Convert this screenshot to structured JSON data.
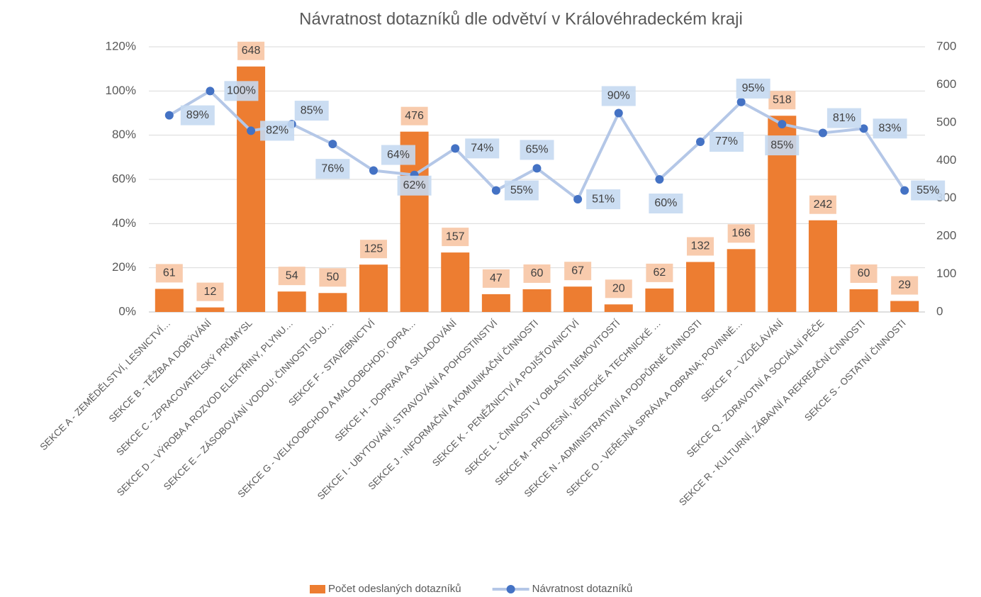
{
  "chart_data": {
    "type": "bar_line",
    "title": "Návratnost dotazníků dle odvětví v Královéhradeckém kraji",
    "categories": [
      "SEKCE A - ZEMĚDĚLSTVÍ, LESNICTVÍ…",
      "SEKCE B - TĚŽBA A DOBÝVÁNÍ",
      "SEKCE C - ZPRACOVATELSKÝ PRŮMYSL",
      "SEKCE D – VÝROBA A ROZVOD ELEKTŘINY, PLYNU…",
      "SEKCE E – ZÁSOBOVÁNÍ VODOU; ČINNOSTI SOU…",
      "SEKCE F - STAVEBNICTVÍ",
      "SEKCE G - VELKOOBCHOD A MALOOBCHOD; OPRA…",
      "SEKCE H - DOPRAVA A SKLADOVÁNÍ",
      "SEKCE I - UBYTOVÁNÍ, STRAVOVÁNÍ A POHOSTINSTVÍ",
      "SEKCE J - INFORMAČNÍ A KOMUNIKAČNÍ ČINNOSTI",
      "SEKCE K - PENĚŽNICTVÍ A POJIŠŤOVNICTVÍ",
      "SEKCE L - ČINNOSTI V OBLASTI NEMOVITOSTÍ",
      "SEKCE M - PROFESNÍ, VĚDECKÉ A TECHNICKÉ …",
      "SEKCE N - ADMINISTRATIVNÍ A PODPŮRNÉ ČINNOSTI",
      "SEKCE O - VEŘEJNÁ SPRÁVA A OBRANA; POVINNÉ…",
      "SEKCE P – VZDĚLÁVÁNÍ",
      "SEKCE Q - ZDRAVOTNÍ A SOCIÁLNÍ PÉČE",
      "SEKCE R - KULTURNÍ, ZÁBAVNÍ A REKREAČNÍ ČINNOSTI",
      "SEKCE S - OSTATNÍ ČINNOSTI"
    ],
    "series": [
      {
        "name": "Počet odeslaných dotazníků",
        "type": "bar",
        "axis": "y2",
        "color": "#ed7d31",
        "label_color": "#f8cbad",
        "values": [
          61,
          12,
          648,
          54,
          50,
          125,
          476,
          157,
          47,
          60,
          67,
          20,
          62,
          132,
          166,
          518,
          242,
          60,
          29
        ]
      },
      {
        "name": "Návratnost dotazníků",
        "type": "line",
        "axis": "y",
        "color": "#b4c7e7",
        "marker_color": "#4472c4",
        "label_color": "#c5d9f1",
        "values": [
          89,
          100,
          82,
          85,
          76,
          64,
          62,
          74,
          55,
          65,
          51,
          90,
          60,
          77,
          95,
          85,
          81,
          83,
          55
        ],
        "value_labels": [
          "89%",
          "100%",
          "82%",
          "85%",
          "76%",
          "64%",
          "62%",
          "74%",
          "55%",
          "65%",
          "51%",
          "90%",
          "60%",
          "77%",
          "95%",
          "85%",
          "81%",
          "83%",
          "55%"
        ]
      }
    ],
    "ylim": [
      0,
      120
    ],
    "yticks": [
      {
        "value": 0,
        "label": "0%"
      },
      {
        "value": 20,
        "label": "20%"
      },
      {
        "value": 40,
        "label": "40%"
      },
      {
        "value": 60,
        "label": "60%"
      },
      {
        "value": 80,
        "label": "80%"
      },
      {
        "value": 100,
        "label": "100%"
      },
      {
        "value": 120,
        "label": "120%"
      }
    ],
    "y2lim": [
      0,
      700
    ],
    "y2ticks": [
      0,
      100,
      200,
      300,
      400,
      500,
      600,
      700
    ],
    "grid": true,
    "legend": "bottom"
  }
}
